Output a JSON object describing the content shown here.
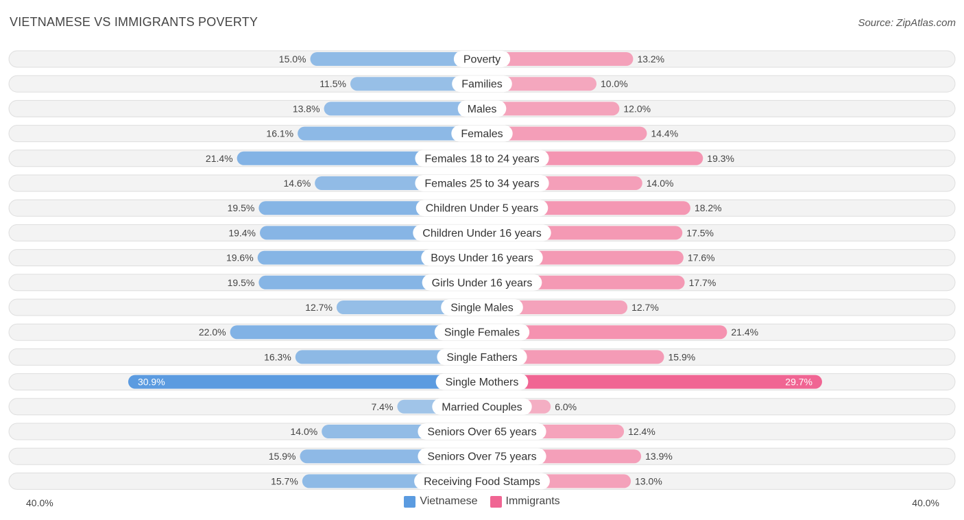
{
  "header": {
    "title": "VIETNAMESE VS IMMIGRANTS POVERTY",
    "source": "Source: ZipAtlas.com"
  },
  "colors": {
    "left": "#7aaee3",
    "left_strong": "#5b9be0",
    "right": "#f48aaa",
    "right_strong": "#f06593",
    "track": "#eeeeee"
  },
  "chart_data": {
    "type": "bar",
    "orientation": "horizontal-diverging",
    "title": "VIETNAMESE VS IMMIGRANTS POVERTY",
    "xlim": [
      -40,
      40
    ],
    "axis_labels": {
      "left": "40.0%",
      "right": "40.0%"
    },
    "categories": [
      "Poverty",
      "Families",
      "Males",
      "Females",
      "Females 18 to 24 years",
      "Females 25 to 34 years",
      "Children Under 5 years",
      "Children Under 16 years",
      "Boys Under 16 years",
      "Girls Under 16 years",
      "Single Males",
      "Single Females",
      "Single Fathers",
      "Single Mothers",
      "Married Couples",
      "Seniors Over 65 years",
      "Seniors Over 75 years",
      "Receiving Food Stamps"
    ],
    "series": [
      {
        "name": "Vietnamese",
        "values": [
          15.0,
          11.5,
          13.8,
          16.1,
          21.4,
          14.6,
          19.5,
          19.4,
          19.6,
          19.5,
          12.7,
          22.0,
          16.3,
          30.9,
          7.4,
          14.0,
          15.9,
          15.7
        ],
        "labels": [
          "15.0%",
          "11.5%",
          "13.8%",
          "16.1%",
          "21.4%",
          "14.6%",
          "19.5%",
          "19.4%",
          "19.6%",
          "19.5%",
          "12.7%",
          "22.0%",
          "16.3%",
          "30.9%",
          "7.4%",
          "14.0%",
          "15.9%",
          "15.7%"
        ]
      },
      {
        "name": "Immigrants",
        "values": [
          13.2,
          10.0,
          12.0,
          14.4,
          19.3,
          14.0,
          18.2,
          17.5,
          17.6,
          17.7,
          12.7,
          21.4,
          15.9,
          29.7,
          6.0,
          12.4,
          13.9,
          13.0
        ],
        "labels": [
          "13.2%",
          "10.0%",
          "12.0%",
          "14.4%",
          "19.3%",
          "14.0%",
          "18.2%",
          "17.5%",
          "17.6%",
          "17.7%",
          "12.7%",
          "21.4%",
          "15.9%",
          "29.7%",
          "6.0%",
          "12.4%",
          "13.9%",
          "13.0%"
        ]
      }
    ],
    "legend": [
      "Vietnamese",
      "Immigrants"
    ],
    "legend_position": "bottom-center"
  }
}
